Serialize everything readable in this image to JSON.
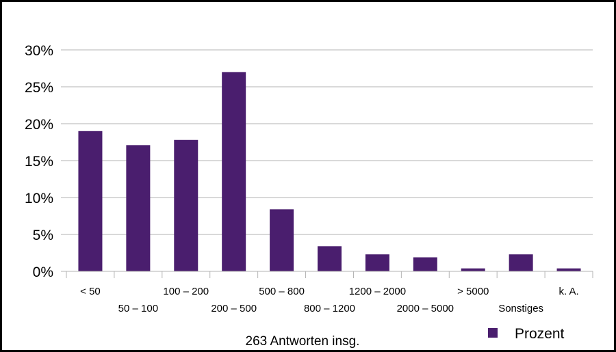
{
  "chart_data": {
    "type": "bar",
    "categories": [
      "< 50",
      "50 – 100",
      "100 – 200",
      "200 – 500",
      "500 – 800",
      "800 – 1200",
      "1200 – 2000",
      "2000 – 5000",
      "> 5000",
      "Sonstiges",
      "k. A."
    ],
    "series": [
      {
        "name": "Prozent",
        "values": [
          19.0,
          17.1,
          17.8,
          27.0,
          8.4,
          3.4,
          2.3,
          1.9,
          0.4,
          2.3,
          0.4
        ]
      }
    ],
    "ylim": [
      0,
      30
    ],
    "yticks": [
      "0%",
      "5%",
      "10%",
      "15%",
      "20%",
      "25%",
      "30%"
    ],
    "xlabel": "263 Antworten insg.",
    "ylabel": "",
    "grid": true,
    "legend_position": "bottom-right",
    "bar_color": "#4a1e6e",
    "grid_color": "#b3b3b3"
  }
}
